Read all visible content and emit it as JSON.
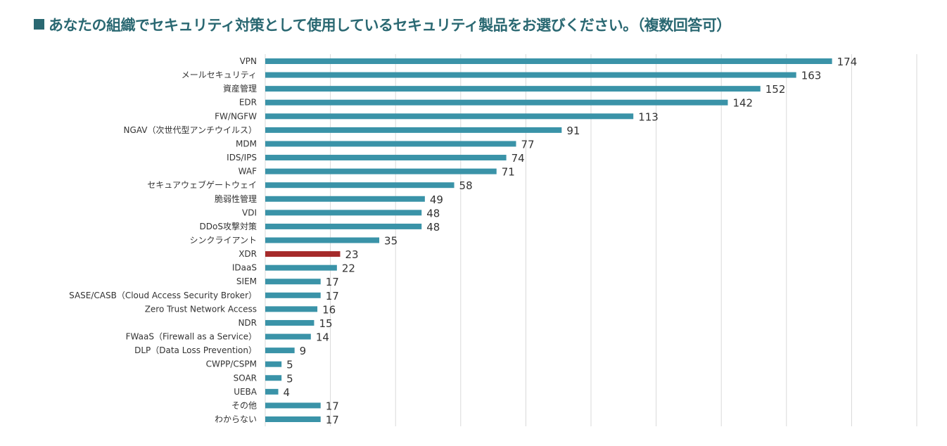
{
  "chart_data": {
    "type": "bar",
    "orientation": "horizontal",
    "title": "あなたの組織でセキュリティ対策として使用しているセキュリティ製品をお選びください。（複数回答可）",
    "categories": [
      "VPN",
      "メールセキュリティ",
      "資産管理",
      "EDR",
      "FW/NGFW",
      "NGAV（次世代型アンチウイルス）",
      "MDM",
      "IDS/IPS",
      "WAF",
      "セキュアウェブゲートウェイ",
      "脆弱性管理",
      "VDI",
      "DDoS攻撃対策",
      "シンクライアント",
      "XDR",
      "IDaaS",
      "SIEM",
      "SASE/CASB（Cloud Access Security Broker）",
      "Zero Trust Network Access",
      "NDR",
      "FWaaS（Firewall as a Service）",
      "DLP（Data Loss Prevention）",
      "CWPP/CSPM",
      "SOAR",
      "UEBA",
      "その他",
      "わからない"
    ],
    "values": [
      174,
      163,
      152,
      142,
      113,
      91,
      77,
      74,
      71,
      58,
      49,
      48,
      48,
      35,
      23,
      22,
      17,
      17,
      16,
      15,
      14,
      9,
      5,
      5,
      4,
      17,
      17
    ],
    "highlight": "XDR",
    "xlim": [
      0,
      200
    ],
    "grid_step": 20,
    "grid": true,
    "colors": {
      "bar": "#3a93a8",
      "highlight": "#a52a2a",
      "title": "#2a6872",
      "grid": "#d9d9d9"
    }
  }
}
